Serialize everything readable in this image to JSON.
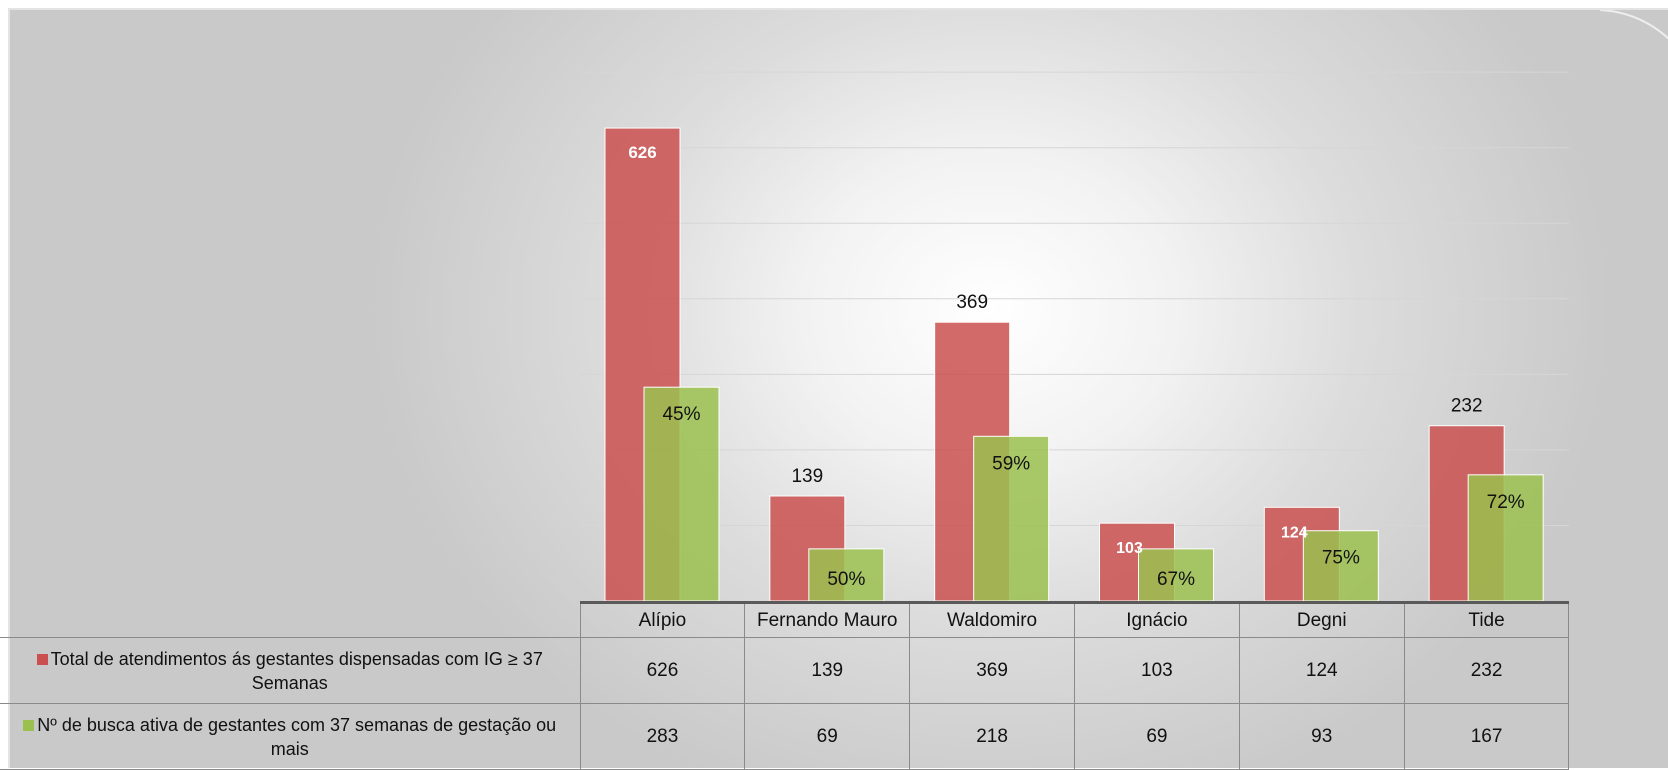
{
  "colors": {
    "total": "#c9504f",
    "busca": "#9bc04f"
  },
  "chart_data": {
    "type": "bar",
    "categories": [
      "Alípio",
      "Fernando Mauro",
      "Waldomiro",
      "Ignácio",
      "Degni",
      "Tide"
    ],
    "series": [
      {
        "name": "Total de atendimentos ás gestantes dispensadas com IG ≥ 37 Semanas",
        "values": [
          626,
          139,
          369,
          103,
          124,
          232
        ],
        "labels": [
          "626",
          "139",
          "369",
          "103",
          "124",
          "232"
        ]
      },
      {
        "name": "Nº de busca ativa de gestantes com 37 semanas de gestação ou mais",
        "values": [
          283,
          69,
          218,
          69,
          93,
          167
        ],
        "labels": [
          "45%",
          "50%",
          "59%",
          "67%",
          "75%",
          "72%"
        ]
      }
    ],
    "ylim": [
      0,
      700
    ],
    "grid": true,
    "legend": "table-left"
  },
  "table": {
    "legend_total": "Total de atendimentos ás gestantes dispensadas com IG ≥ 37 Semanas",
    "legend_busca": "Nº de busca ativa de gestantes com 37 semanas de gestação ou mais"
  }
}
